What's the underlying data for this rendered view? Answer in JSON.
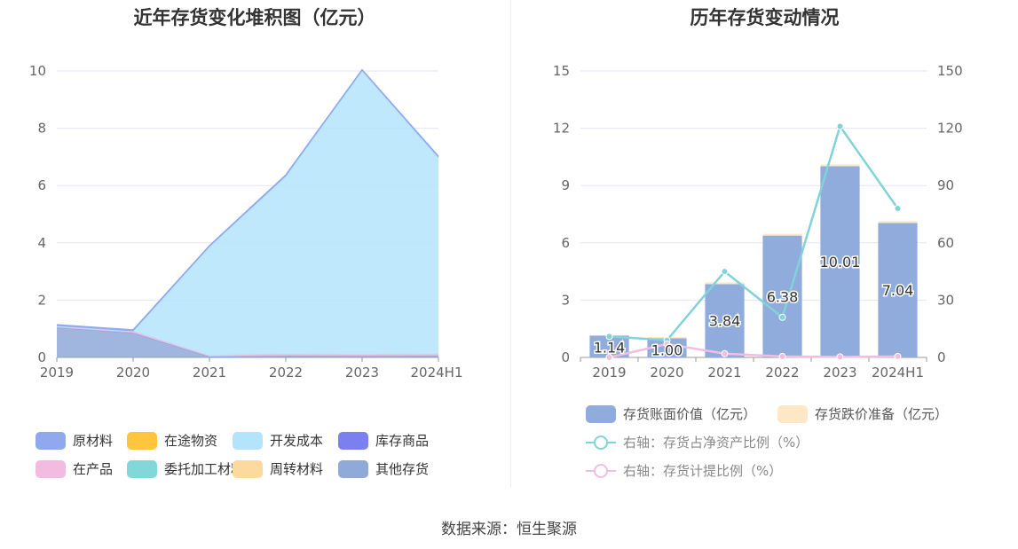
{
  "left_chart": {
    "title": "近年存货变化堆积图（亿元）",
    "legend": [
      {
        "name": "原材料",
        "color": "#8fa8ee"
      },
      {
        "name": "在途物资",
        "color": "#ffc53d"
      },
      {
        "name": "开发成本",
        "color": "#b4e4fb"
      },
      {
        "name": "库存商品",
        "color": "#7b7ff0"
      },
      {
        "name": "在产品",
        "color": "#f2bce0"
      },
      {
        "name": "委托加工材料",
        "color": "#82d7d8"
      },
      {
        "name": "周转材料",
        "color": "#fcd99c"
      },
      {
        "name": "其他存货",
        "color": "#8fa9d8"
      }
    ]
  },
  "right_chart": {
    "title": "历年存货变动情况",
    "legend": [
      {
        "name": "存货账面价值（亿元）",
        "color": "#8facdc",
        "kind": "bar"
      },
      {
        "name": "存货跌价准备（亿元）",
        "color": "#fde7c4",
        "kind": "bar"
      },
      {
        "name": "右轴：存货占净资产比例（%）",
        "color": "#82d2d9",
        "kind": "line"
      },
      {
        "name": "右轴：存货计提比例（%）",
        "color": "#f0bfe0",
        "kind": "line"
      }
    ]
  },
  "chart_data": [
    {
      "type": "area",
      "title": "近年存货变化堆积图（亿元）",
      "categories": [
        "2019",
        "2020",
        "2021",
        "2022",
        "2023",
        "2024H1"
      ],
      "y_ticks": [
        "0",
        "2",
        "4",
        "6",
        "8",
        "10"
      ],
      "ylim": [
        0,
        10
      ],
      "stacked": true,
      "series": [
        {
          "name": "其他存货",
          "color": "#8fa9d8",
          "values": [
            1.04,
            0.86,
            0.03,
            0.06,
            0.05,
            0.06
          ]
        },
        {
          "name": "在产品",
          "color": "#f2bce0",
          "values": [
            0.05,
            0.05,
            0.03,
            0.06,
            0.05,
            0.06
          ]
        },
        {
          "name": "开发成本",
          "color": "#b4e4fb",
          "values": [
            0.0,
            0.0,
            3.8,
            6.2,
            9.9,
            6.85
          ]
        },
        {
          "name": "原材料",
          "color": "#8fa8ee",
          "values": [
            0.05,
            0.05,
            0.04,
            0.05,
            0.04,
            0.05
          ]
        }
      ]
    },
    {
      "type": "bar",
      "title": "历年存货变动情况",
      "categories": [
        "2019",
        "2020",
        "2021",
        "2022",
        "2023",
        "2024H1"
      ],
      "y_ticks_left": [
        "0",
        "3",
        "6",
        "9",
        "12",
        "15"
      ],
      "y_ticks_right": [
        "0",
        "30",
        "60",
        "90",
        "120",
        "150"
      ],
      "ylim_left": [
        0,
        15
      ],
      "ylim_right": [
        0,
        150
      ],
      "series": [
        {
          "name": "存货账面价值（亿元）",
          "kind": "bar",
          "axis": "left",
          "color": "#8facdc",
          "values": [
            1.14,
            1.0,
            3.84,
            6.38,
            10.01,
            7.04
          ],
          "labels": [
            "1.14",
            "1.00",
            "3.84",
            "6.38",
            "10.01",
            "7.04"
          ]
        },
        {
          "name": "存货跌价准备（亿元）",
          "kind": "bar",
          "axis": "left",
          "color": "#fde7c4",
          "values": [
            0.02,
            0.07,
            0.09,
            0.09,
            0.1,
            0.1
          ]
        },
        {
          "name": "右轴：存货占净资产比例（%）",
          "kind": "line",
          "axis": "right",
          "color": "#82d2d9",
          "values": [
            11.0,
            9.0,
            45.0,
            21.0,
            121.0,
            78.0
          ]
        },
        {
          "name": "右轴：存货计提比例（%）",
          "kind": "line",
          "axis": "right",
          "color": "#f0bfe0",
          "values": [
            0.0,
            7.0,
            2.0,
            0.5,
            0.3,
            0.5
          ]
        }
      ]
    }
  ],
  "source": "数据来源：恒生聚源"
}
